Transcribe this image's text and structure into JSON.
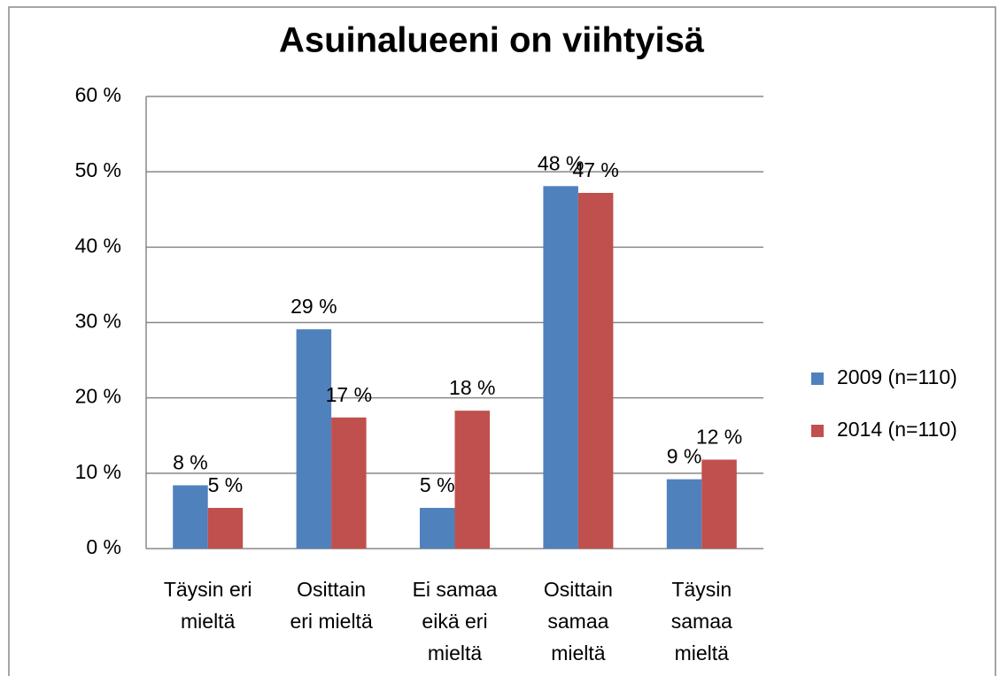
{
  "chart_data": {
    "type": "bar",
    "title": "Asuinalueeni on viihtyisä",
    "categories": [
      [
        "Täysin eri",
        "mieltä"
      ],
      [
        "Osittain",
        "eri mieltä"
      ],
      [
        "Ei samaa",
        "eikä eri",
        "mieltä"
      ],
      [
        "Osittain",
        "samaa",
        "mieltä"
      ],
      [
        "Täysin",
        "samaa",
        "mieltä"
      ]
    ],
    "series": [
      {
        "name": "2009 (n=110)",
        "color": "#4f81bd",
        "values": [
          8.4,
          29.1,
          5.4,
          48.1,
          9.2
        ],
        "value_labels": [
          "8 %",
          "29 %",
          "5 %",
          "48 %",
          "9 %"
        ]
      },
      {
        "name": "2014 (n=110)",
        "color": "#c0504d",
        "values": [
          5.4,
          17.4,
          18.3,
          47.2,
          11.8
        ],
        "value_labels": [
          "5 %",
          "17 %",
          "18 %",
          "47 %",
          "12 %"
        ]
      }
    ],
    "ylim": [
      0,
      60
    ],
    "yticks": [
      {
        "value": 0,
        "label": "0 %"
      },
      {
        "value": 10,
        "label": "10 %"
      },
      {
        "value": 20,
        "label": "20 %"
      },
      {
        "value": 30,
        "label": "30 %"
      },
      {
        "value": 40,
        "label": "40 %"
      },
      {
        "value": 50,
        "label": "50 %"
      },
      {
        "value": 60,
        "label": "60 %"
      }
    ],
    "grid": true,
    "legend": "right"
  }
}
